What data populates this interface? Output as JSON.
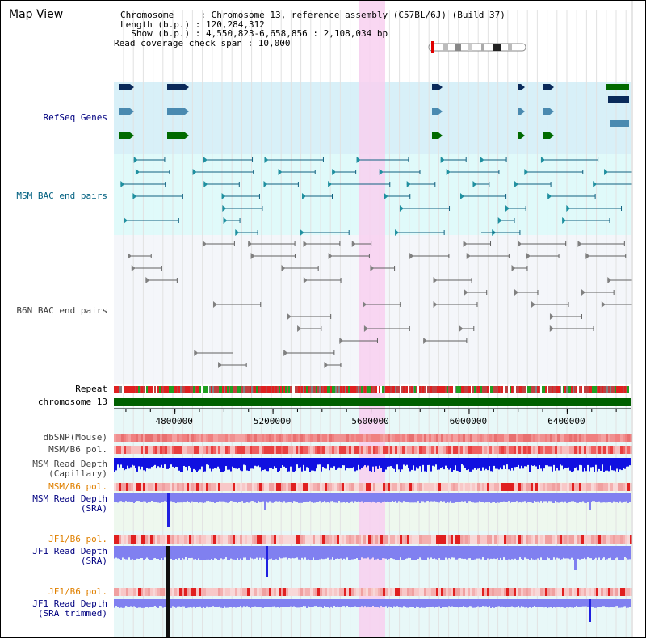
{
  "page": {
    "title": "Map View"
  },
  "info": {
    "chromosome_line": "Chromosome     : Chromosome 13, reference assembly (C57BL/6J) (Build 37)",
    "length_line": "Length (b.p.) : 120,284,312",
    "show_line": "  Show (b.p.) : 4,550,823-6,658,856 : 2,108,034 bp",
    "coverage_line": "Read coverage check span : 10,000"
  },
  "tracks": {
    "refseq": "RefSeq Genes",
    "msm_bac": "MSM BAC end pairs",
    "b6n_bac": "B6N BAC end pairs",
    "repeat": "Repeat",
    "chromosome": "chromosome 13",
    "dbsnp": "dbSNP(Mouse)",
    "msm_b6_pol_1": "MSM/B6 pol.",
    "msm_depth_cap_1": "MSM Read Depth",
    "msm_depth_cap_2": "(Capillary)",
    "msm_b6_pol_2": "MSM/B6 pol.",
    "msm_depth_sra_1": "MSM Read Depth",
    "msm_depth_sra_2": "(SRA)",
    "jf1_b6_pol_1": "JF1/B6 pol.",
    "jf1_depth_sra_1": "JF1 Read Depth",
    "jf1_depth_sra_2": "(SRA)",
    "jf1_b6_pol_2": "JF1/B6 pol.",
    "jf1_depth_trim_1": "JF1 Read Depth",
    "jf1_depth_trim_2": "(SRA trimmed)"
  },
  "axis": {
    "ticks": [
      "4800000",
      "5200000",
      "5600000",
      "6000000",
      "6400000"
    ],
    "range": [
      4550823,
      6658856
    ]
  },
  "colors": {
    "label_blue": "#000080",
    "label_teal": "#006080",
    "label_orange": "#e08000",
    "label_gray": "#404040",
    "highlight": "#f8d0f0",
    "refseq_bg": "#d8f0f8",
    "msm_bg": "#e0fafa",
    "b6n_bg": "#f4f6fa",
    "chrom_green": "#006000",
    "depth_blue": "#1010e0",
    "depth_light": "#8080f0"
  }
}
